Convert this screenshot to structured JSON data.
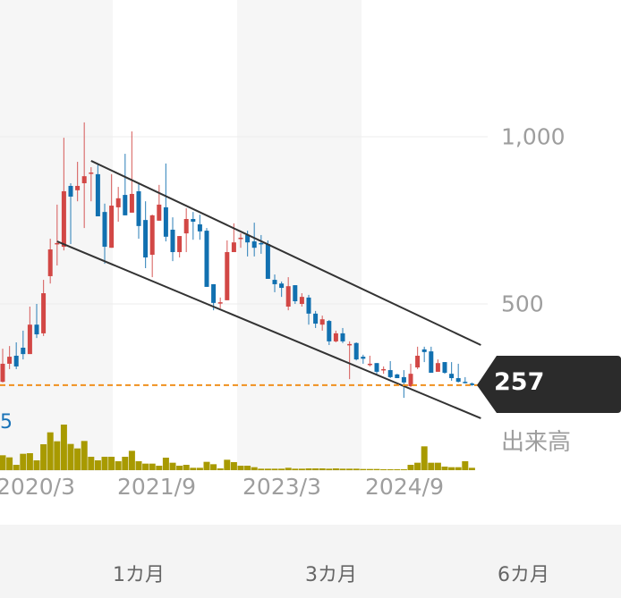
{
  "colors": {
    "up": "#d24745",
    "down": "#1170b0",
    "volume": "#a89a00",
    "current_price_line": "#f0901e",
    "price_tag": "#2b2b2b",
    "trendline": "#333333",
    "band": "#f6f6f6"
  },
  "chart_data": {
    "type": "candlestick",
    "interval": "monthly",
    "y_ticks": [
      {
        "value": 1000,
        "label": "1,000"
      },
      {
        "value": 500,
        "label": "500"
      }
    ],
    "x_ticks": [
      {
        "date": "2020-03",
        "label": "2020/3"
      },
      {
        "date": "2021-09",
        "label": "2021/9"
      },
      {
        "date": "2023-03",
        "label": "2023/3"
      },
      {
        "date": "2024-09",
        "label": "2024/9"
      }
    ],
    "current_price": 257,
    "current_price_label": "257",
    "volume_label": "出来高",
    "volume_value_partial": "5",
    "grid": true,
    "dates": [
      "2019-11",
      "2019-12",
      "2020-01",
      "2020-02",
      "2020-03",
      "2020-04",
      "2020-05",
      "2020-06",
      "2020-07",
      "2020-08",
      "2020-09",
      "2020-10",
      "2020-11",
      "2020-12",
      "2021-01",
      "2021-02",
      "2021-03",
      "2021-04",
      "2021-05",
      "2021-06",
      "2021-07",
      "2021-08",
      "2021-09",
      "2021-10",
      "2021-11",
      "2021-12",
      "2022-01",
      "2022-02",
      "2022-03",
      "2022-04",
      "2022-05",
      "2022-06",
      "2022-07",
      "2022-08",
      "2022-09",
      "2022-10",
      "2022-11",
      "2022-12",
      "2023-01",
      "2023-02",
      "2023-03",
      "2023-04",
      "2023-05",
      "2023-06",
      "2023-07",
      "2023-08",
      "2023-09",
      "2023-10",
      "2023-11",
      "2023-12",
      "2024-01",
      "2024-02",
      "2024-03",
      "2024-04",
      "2024-05",
      "2024-06",
      "2024-07",
      "2024-08",
      "2024-09",
      "2024-10",
      "2024-11",
      "2024-12",
      "2025-01",
      "2025-02",
      "2025-03",
      "2025-04",
      "2025-05",
      "2025-06",
      "2025-07",
      "2025-08"
    ],
    "ohlc": [
      [
        267,
        366,
        265,
        321
      ],
      [
        321,
        374,
        305,
        342
      ],
      [
        345,
        385,
        305,
        313
      ],
      [
        369,
        420,
        334,
        350
      ],
      [
        350,
        492,
        350,
        438
      ],
      [
        438,
        500,
        398,
        409
      ],
      [
        412,
        572,
        404,
        532
      ],
      [
        583,
        695,
        561,
        663
      ],
      [
        682,
        797,
        615,
        682
      ],
      [
        671,
        997,
        660,
        837
      ],
      [
        853,
        861,
        679,
        821
      ],
      [
        840,
        925,
        807,
        853
      ],
      [
        861,
        1043,
        727,
        882
      ],
      [
        893,
        909,
        807,
        893
      ],
      [
        888,
        920,
        762,
        762
      ],
      [
        775,
        800,
        620,
        671
      ],
      [
        668,
        888,
        668,
        794
      ],
      [
        789,
        850,
        746,
        816
      ],
      [
        826,
        949,
        765,
        765
      ],
      [
        773,
        1016,
        773,
        829
      ],
      [
        837,
        861,
        695,
        733
      ],
      [
        751,
        807,
        607,
        639
      ],
      [
        647,
        767,
        580,
        765
      ],
      [
        749,
        856,
        749,
        797
      ],
      [
        789,
        920,
        687,
        701
      ],
      [
        722,
        759,
        628,
        655
      ],
      [
        655,
        703,
        639,
        703
      ],
      [
        711,
        786,
        655,
        754
      ],
      [
        754,
        775,
        692,
        746
      ],
      [
        738,
        767,
        692,
        717
      ],
      [
        719,
        727,
        551,
        551
      ],
      [
        559,
        559,
        481,
        503
      ],
      [
        505,
        519,
        487,
        505
      ],
      [
        511,
        690,
        511,
        655
      ],
      [
        655,
        741,
        655,
        684
      ],
      [
        698,
        711,
        668,
        698
      ],
      [
        706,
        719,
        642,
        684
      ],
      [
        687,
        743,
        642,
        668
      ],
      [
        682,
        706,
        650,
        679
      ],
      [
        679,
        690,
        575,
        575
      ],
      [
        572,
        588,
        535,
        559
      ],
      [
        561,
        567,
        521,
        548
      ],
      [
        492,
        580,
        481,
        553
      ],
      [
        556,
        556,
        500,
        508
      ],
      [
        500,
        532,
        492,
        521
      ],
      [
        519,
        527,
        438,
        471
      ],
      [
        471,
        479,
        428,
        441
      ],
      [
        438,
        465,
        420,
        454
      ],
      [
        449,
        452,
        377,
        388
      ],
      [
        388,
        420,
        385,
        412
      ],
      [
        412,
        428,
        383,
        388
      ],
      [
        377,
        388,
        275,
        380
      ],
      [
        383,
        385,
        331,
        334
      ],
      [
        342,
        348,
        321,
        336
      ],
      [
        318,
        345,
        313,
        321
      ],
      [
        323,
        323,
        286,
        297
      ],
      [
        302,
        313,
        291,
        305
      ],
      [
        302,
        329,
        278,
        281
      ],
      [
        289,
        291,
        278,
        278
      ],
      [
        281,
        302,
        219,
        265
      ],
      [
        254,
        321,
        251,
        291
      ],
      [
        310,
        372,
        305,
        345
      ],
      [
        364,
        372,
        326,
        356
      ],
      [
        358,
        372,
        294,
        294
      ],
      [
        297,
        334,
        297,
        323
      ],
      [
        326,
        326,
        291,
        294
      ],
      [
        291,
        326,
        270,
        278
      ],
      [
        278,
        321,
        265,
        267
      ],
      [
        267,
        281,
        262,
        265
      ],
      [
        262,
        265,
        255,
        257
      ]
    ],
    "volume": [
      50,
      43,
      18,
      55,
      57,
      33,
      87,
      127,
      97,
      153,
      88,
      73,
      98,
      45,
      33,
      45,
      45,
      30,
      45,
      65,
      30,
      22,
      22,
      15,
      42,
      25,
      15,
      18,
      8,
      8,
      28,
      20,
      6,
      35,
      27,
      15,
      15,
      10,
      5,
      5,
      5,
      5,
      8,
      5,
      5,
      6,
      6,
      6,
      5,
      6,
      5,
      5,
      5,
      4,
      4,
      4,
      3,
      3,
      3,
      3,
      18,
      25,
      80,
      25,
      25,
      12,
      10,
      10,
      30,
      8
    ],
    "trendlines": [
      {
        "from": {
          "date": "2020-12",
          "price": 928
        },
        "to": {
          "date": "2025-08",
          "price": 377
        }
      },
      {
        "from": {
          "date": "2020-07",
          "price": 687
        },
        "to": {
          "date": "2025-08",
          "price": 158
        }
      }
    ]
  },
  "periods": [
    {
      "label": "1カ月"
    },
    {
      "label": "3カ月"
    },
    {
      "label": "6カ月"
    }
  ]
}
